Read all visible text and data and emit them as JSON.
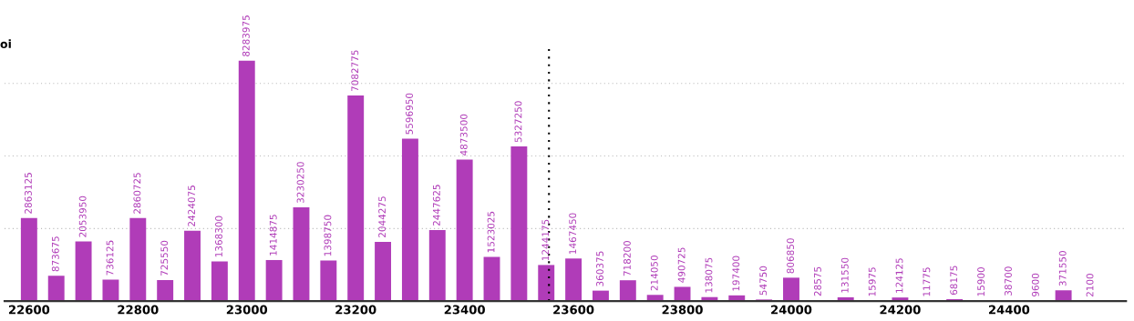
{
  "chart_data": {
    "type": "bar",
    "ylabel": "oi",
    "x": [
      22600,
      22650,
      22700,
      22750,
      22800,
      22850,
      22900,
      22950,
      23000,
      23050,
      23100,
      23150,
      23200,
      23250,
      23300,
      23350,
      23400,
      23450,
      23500,
      23550,
      23600,
      23650,
      23700,
      23750,
      23800,
      23850,
      23900,
      23950,
      24000,
      24050,
      24100,
      24150,
      24200,
      24250,
      24300,
      24350,
      24400,
      24450,
      24500,
      24550
    ],
    "series": [
      {
        "color": "#b03cb8",
        "values": [
          2863125,
          873675,
          2053950,
          736125,
          2860725,
          725550,
          2424075,
          1368300,
          8283975,
          1414875,
          3230250,
          1398750,
          7082775,
          2044275,
          5596950,
          2447625,
          4873500,
          1523025,
          5327250,
          1244175,
          1467450,
          360375,
          718200,
          214050,
          490725,
          138075,
          197400,
          54750,
          806850,
          28575,
          131550,
          15975,
          124125,
          11775,
          68175,
          15900,
          38700,
          9600,
          371550,
          2100
        ]
      }
    ],
    "data_labels": true,
    "xlim": [
      22555,
      24615
    ],
    "xticks": [
      22600,
      22800,
      23000,
      23200,
      23400,
      23600,
      23800,
      24000,
      24200,
      24400
    ],
    "ylim": [
      0,
      8750000
    ],
    "yticks": [
      {
        "value": 2500000,
        "label": null
      },
      {
        "value": 5000000,
        "label": null
      },
      {
        "value": 7500000,
        "label": null
      }
    ],
    "tick_labels": "x",
    "grid": "y",
    "ref_lines": [
      {
        "axis": "x",
        "value": 23555,
        "color": "#000000",
        "line_style": "dotted"
      }
    ]
  }
}
